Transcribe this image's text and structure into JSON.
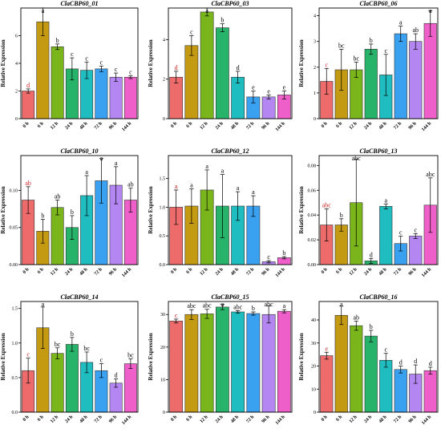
{
  "colors": [
    "#ee6b6b",
    "#c49a12",
    "#7ab51c",
    "#27b36a",
    "#1fbcc0",
    "#3aa0f0",
    "#b386f2",
    "#ef5fc9"
  ],
  "chart_data": [
    {
      "type": "bar",
      "title": "ClaCBP60_01",
      "ylabel": "Relative Expression",
      "categories": [
        "0 h",
        "6 h",
        "12 h",
        "24 h",
        "48 h",
        "72 h",
        "96 h",
        "144 h"
      ],
      "values": [
        2.0,
        7.0,
        5.2,
        3.6,
        3.5,
        3.6,
        3.0,
        3.0
      ],
      "errors": [
        0.15,
        1.0,
        0.2,
        0.8,
        0.6,
        0.2,
        0.3,
        0.1
      ],
      "labels": [
        "d",
        "a",
        "b",
        "c",
        "c",
        "c",
        "c",
        "c"
      ],
      "ylim": [
        0,
        8
      ],
      "yticks": [
        0,
        2,
        4,
        6
      ]
    },
    {
      "type": "bar",
      "title": "ClaCBP60_03",
      "ylabel": "Relative Expression",
      "categories": [
        "0 h",
        "6 h",
        "12 h",
        "24 h",
        "48 h",
        "72 h",
        "96 h",
        "144 h"
      ],
      "values": [
        2.1,
        3.7,
        5.4,
        4.6,
        2.1,
        1.1,
        1.1,
        1.2
      ],
      "errors": [
        0.3,
        0.5,
        0.2,
        0.2,
        0.3,
        0.3,
        0.1,
        0.2
      ],
      "labels": [
        "d",
        "c",
        "a",
        "b",
        "d",
        "e",
        "e",
        "e"
      ],
      "ylim": [
        0,
        5.6
      ],
      "yticks": [
        0,
        2,
        4
      ]
    },
    {
      "type": "bar",
      "title": "ClaCBP60_06",
      "ylabel": "Relative Expression",
      "categories": [
        "0 h",
        "6 h",
        "12 h",
        "24 h",
        "48 h",
        "72 h",
        "96 h",
        "144 h"
      ],
      "values": [
        1.45,
        1.9,
        1.9,
        2.7,
        1.7,
        3.3,
        3.0,
        3.7
      ],
      "errors": [
        0.5,
        0.8,
        0.3,
        0.2,
        0.8,
        0.3,
        0.3,
        0.5
      ],
      "labels": [
        "c",
        "bc",
        "bc",
        "b",
        "c",
        "a",
        "ab",
        "a"
      ],
      "ylim": [
        0,
        4.3
      ],
      "yticks": [
        0,
        1,
        2,
        3,
        4
      ]
    },
    {
      "type": "bar",
      "title": "ClaCBP60_10",
      "ylabel": "Relative Expression",
      "categories": [
        "0 h",
        "6 h",
        "12 h",
        "24 h",
        "48 h",
        "72 h",
        "96 h",
        "144 h"
      ],
      "values": [
        0.087,
        0.045,
        0.077,
        0.05,
        0.093,
        0.113,
        0.107,
        0.087
      ],
      "errors": [
        0.018,
        0.016,
        0.01,
        0.016,
        0.027,
        0.03,
        0.025,
        0.016
      ],
      "labels": [
        "ab",
        "b",
        "ab",
        "b",
        "a",
        "a",
        "a",
        "ab"
      ],
      "ylim": [
        0,
        0.147
      ],
      "yticks": [
        0.0,
        0.05,
        0.1
      ],
      "tick_decimals": 2
    },
    {
      "type": "bar",
      "title": "ClaCBP60_12",
      "ylabel": "Relative Expression",
      "categories": [
        "0 h",
        "6 h",
        "12 h",
        "24 h",
        "48 h",
        "72 h",
        "96 h",
        "144 h"
      ],
      "values": [
        1.0,
        1.02,
        1.3,
        1.02,
        1.02,
        1.02,
        0.05,
        0.12
      ],
      "errors": [
        0.3,
        0.3,
        0.35,
        0.55,
        0.25,
        0.18,
        0.02,
        0.02
      ],
      "labels": [
        "a",
        "a",
        "a",
        "a",
        "a",
        "a",
        "c",
        "b"
      ],
      "ylim": [
        0,
        1.9
      ],
      "yticks": [
        0.0,
        0.5,
        1.0,
        1.5
      ],
      "tick_decimals": 1
    },
    {
      "type": "bar",
      "title": "ClaCBP60_13",
      "ylabel": "Relative Expression",
      "categories": [
        "0 h",
        "6 h",
        "12 h",
        "24 h",
        "48 h",
        "72 h",
        "96 h",
        "144 h"
      ],
      "values": [
        0.032,
        0.032,
        0.05,
        0.003,
        0.047,
        0.017,
        0.023,
        0.048
      ],
      "errors": [
        0.013,
        0.005,
        0.035,
        0.002,
        0.002,
        0.006,
        0.002,
        0.022
      ],
      "labels": [
        "abc",
        "b",
        "abc",
        "d",
        "a",
        "c",
        "c",
        "abc"
      ],
      "ylim": [
        0,
        0.088
      ],
      "yticks": [
        0.0,
        0.02,
        0.04,
        0.06,
        0.08
      ],
      "tick_decimals": 2
    },
    {
      "type": "bar",
      "title": "ClaCBP60_14",
      "ylabel": "Relative Expression",
      "categories": [
        "0 h",
        "6 h",
        "12 h",
        "24 h",
        "48 h",
        "72 h",
        "96 h",
        "144 h"
      ],
      "values": [
        0.6,
        1.22,
        0.85,
        0.98,
        0.72,
        0.6,
        0.42,
        0.7
      ],
      "errors": [
        0.18,
        0.3,
        0.08,
        0.1,
        0.15,
        0.1,
        0.06,
        0.07
      ],
      "labels": [
        "c",
        "a",
        "bc",
        "b",
        "bc",
        "c",
        "d",
        "bc"
      ],
      "ylim": [
        0,
        1.6
      ],
      "yticks": [
        0.0,
        0.5,
        1.0,
        1.5
      ],
      "tick_decimals": 1
    },
    {
      "type": "bar",
      "title": "ClaCBP60_15",
      "ylabel": "Relative Expression",
      "categories": [
        "0 h",
        "6 h",
        "12 h",
        "24 h",
        "48 h",
        "72 h",
        "96 h",
        "144 h"
      ],
      "values": [
        28.0,
        30.0,
        30.2,
        32.3,
        30.8,
        30.3,
        30.0,
        31.0
      ],
      "errors": [
        0.6,
        1.5,
        1.4,
        0.8,
        0.4,
        0.5,
        2.6,
        0.5
      ],
      "labels": [
        "c",
        "abc",
        "abc",
        "a",
        "abc",
        "b",
        "abc",
        "a"
      ],
      "ylim": [
        0,
        34
      ],
      "yticks": [
        0,
        10,
        20,
        30
      ]
    },
    {
      "type": "bar",
      "title": "ClaCBP60_16",
      "ylabel": "Relative Expression",
      "categories": [
        "0 h",
        "6 h",
        "12 h",
        "24 h",
        "48 h",
        "72 h",
        "96 h",
        "144 h"
      ],
      "values": [
        24.5,
        42.0,
        37.5,
        33.0,
        22.5,
        18.5,
        16.5,
        18.0
      ],
      "errors": [
        1.5,
        4.0,
        2.0,
        2.5,
        3.0,
        1.5,
        4.0,
        1.5
      ],
      "labels": [
        "e",
        "a",
        "ab",
        "b",
        "c",
        "d",
        "d",
        "d"
      ],
      "ylim": [
        0,
        48
      ],
      "yticks": [
        0,
        10,
        20,
        30,
        40
      ]
    }
  ]
}
